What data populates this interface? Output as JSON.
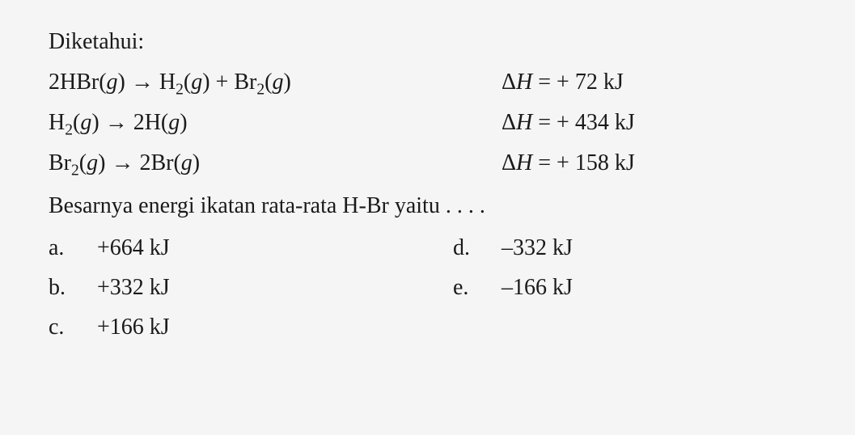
{
  "header": "Diketahui:",
  "reactions": [
    {
      "lhs": "2HBr(<i>g</i>) <span class='arrow'>→</span> H<sub>2</sub>(<i>g</i>) + Br<sub>2</sub>(<i>g</i>)",
      "rhs": "Δ<i>H</i> = + 72 kJ"
    },
    {
      "lhs": "H<sub>2</sub>(<i>g</i>) <span class='arrow'>→</span> 2H(<i>g</i>)",
      "rhs": "Δ<i>H</i> = + 434 kJ"
    },
    {
      "lhs": "Br<sub>2</sub>(<i>g</i>) <span class='arrow'>→</span> 2Br(<i>g</i>)",
      "rhs": "Δ<i>H</i> = + 158 kJ"
    }
  ],
  "question": "Besarnya energi ikatan rata-rata H-Br yaitu . . . .",
  "options": {
    "a": "+664 kJ",
    "b": "+332 kJ",
    "c": "+166 kJ",
    "d": "–332 kJ",
    "e": "–166 kJ"
  },
  "style": {
    "font_size_pt": 28,
    "text_color": "#1a1a1a",
    "background_color": "#f5f5f5",
    "font_family": "Georgia, Times New Roman, serif",
    "line_height": 1.6
  }
}
